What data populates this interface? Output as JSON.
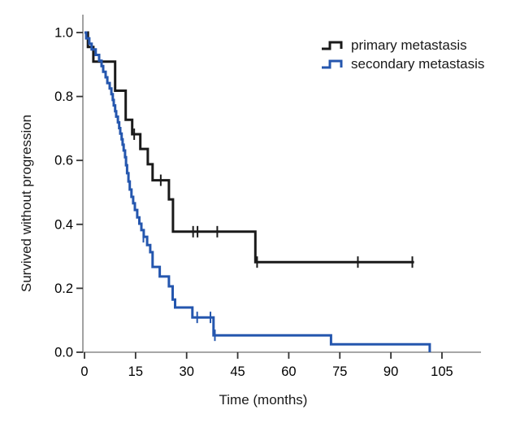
{
  "figure": {
    "ylabel": "Survived without progression",
    "xlabel": "Time (months)"
  },
  "legend": {
    "items": [
      {
        "label": "primary metastasis",
        "color": "#1a1a1a"
      },
      {
        "label": "secondary metastasis",
        "color": "#2456ae"
      }
    ]
  },
  "chart_data": {
    "type": "line",
    "subtype": "kaplan-meier-step-curves",
    "title": "",
    "xlabel": "Time (months)",
    "ylabel": "Survived without progression",
    "xlim": [
      0,
      116
    ],
    "ylim": [
      0.0,
      1.0
    ],
    "xticks": [
      0,
      15,
      30,
      45,
      60,
      75,
      90,
      105
    ],
    "yticks": [
      0.0,
      0.2,
      0.4,
      0.6,
      0.8,
      1.0
    ],
    "grid": false,
    "legend_position": "top-right",
    "axis_color": "#8a8a8a",
    "tick_color": "#333333",
    "series": [
      {
        "name": "primary metastasis",
        "color": "#1a1a1a",
        "line_width": 3,
        "end_t": 96.8,
        "steps": [
          [
            0,
            1.0
          ],
          [
            1.0,
            0.955
          ],
          [
            2.6,
            0.909
          ],
          [
            9.0,
            0.818
          ],
          [
            12.1,
            0.727
          ],
          [
            14.0,
            0.682
          ],
          [
            16.4,
            0.636
          ],
          [
            18.6,
            0.588
          ],
          [
            20.0,
            0.538
          ],
          [
            24.8,
            0.478
          ],
          [
            26.0,
            0.377
          ],
          [
            50.2,
            0.282
          ]
        ],
        "censors": [
          [
            14.6,
            0.682
          ],
          [
            22.4,
            0.538
          ],
          [
            31.9,
            0.377
          ],
          [
            33.2,
            0.377
          ],
          [
            39.0,
            0.377
          ],
          [
            50.7,
            0.282
          ],
          [
            80.3,
            0.282
          ],
          [
            96.3,
            0.282
          ]
        ]
      },
      {
        "name": "secondary metastasis",
        "color": "#2456ae",
        "line_width": 3,
        "end_t": 101.4,
        "steps": [
          [
            0,
            1.0
          ],
          [
            0.5,
            0.982
          ],
          [
            1.4,
            0.965
          ],
          [
            2.1,
            0.947
          ],
          [
            3.3,
            0.93
          ],
          [
            4.3,
            0.912
          ],
          [
            5.0,
            0.895
          ],
          [
            5.5,
            0.877
          ],
          [
            6.2,
            0.86
          ],
          [
            6.7,
            0.842
          ],
          [
            7.4,
            0.825
          ],
          [
            7.9,
            0.807
          ],
          [
            8.3,
            0.789
          ],
          [
            8.6,
            0.772
          ],
          [
            9.0,
            0.754
          ],
          [
            9.3,
            0.737
          ],
          [
            9.8,
            0.719
          ],
          [
            10.2,
            0.701
          ],
          [
            10.5,
            0.684
          ],
          [
            10.9,
            0.666
          ],
          [
            11.2,
            0.649
          ],
          [
            11.5,
            0.631
          ],
          [
            11.9,
            0.61
          ],
          [
            12.2,
            0.585
          ],
          [
            12.5,
            0.56
          ],
          [
            12.9,
            0.534
          ],
          [
            13.3,
            0.509
          ],
          [
            13.8,
            0.486
          ],
          [
            14.3,
            0.466
          ],
          [
            14.8,
            0.445
          ],
          [
            15.5,
            0.422
          ],
          [
            16.1,
            0.402
          ],
          [
            16.7,
            0.382
          ],
          [
            17.4,
            0.361
          ],
          [
            18.4,
            0.335
          ],
          [
            19.3,
            0.313
          ],
          [
            20.0,
            0.267
          ],
          [
            22.1,
            0.237
          ],
          [
            24.8,
            0.206
          ],
          [
            25.9,
            0.165
          ],
          [
            26.6,
            0.14
          ],
          [
            31.7,
            0.109
          ],
          [
            37.9,
            0.053
          ],
          [
            72.4,
            0.025
          ],
          [
            101.4,
            0.0
          ]
        ],
        "censors": [
          [
            17.3,
            0.361
          ],
          [
            33.1,
            0.109
          ],
          [
            37.0,
            0.109
          ],
          [
            38.3,
            0.053
          ]
        ]
      }
    ]
  }
}
